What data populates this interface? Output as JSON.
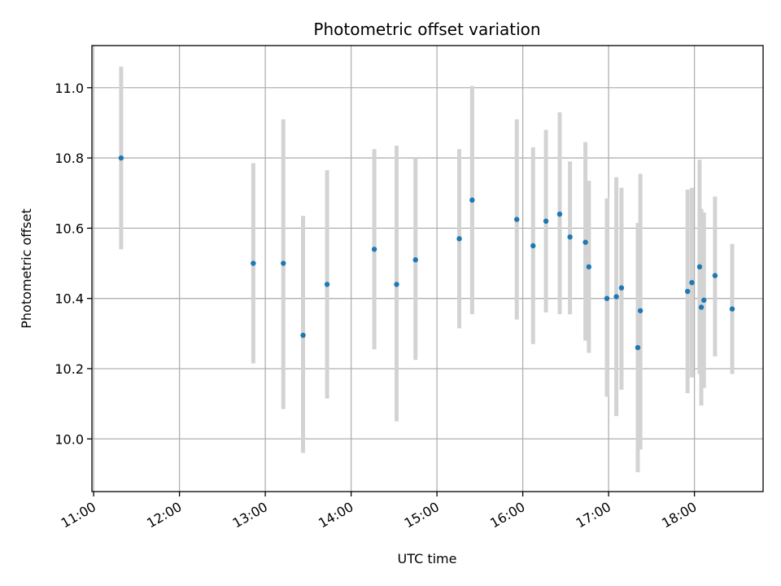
{
  "chart_data": {
    "type": "scatter",
    "title": "Photometric offset variation",
    "xlabel": "UTC time",
    "ylabel": "Photometric offset",
    "grid": true,
    "xlim": [
      10.98,
      18.8
    ],
    "ylim": [
      9.85,
      11.12
    ],
    "x_ticks": [
      {
        "value": 11,
        "label": "11:00"
      },
      {
        "value": 12,
        "label": "12:00"
      },
      {
        "value": 13,
        "label": "13:00"
      },
      {
        "value": 14,
        "label": "14:00"
      },
      {
        "value": 15,
        "label": "15:00"
      },
      {
        "value": 16,
        "label": "16:00"
      },
      {
        "value": 17,
        "label": "17:00"
      },
      {
        "value": 18,
        "label": "18:00"
      }
    ],
    "y_ticks": [
      {
        "value": 10.0,
        "label": "10.0"
      },
      {
        "value": 10.2,
        "label": "10.2"
      },
      {
        "value": 10.4,
        "label": "10.4"
      },
      {
        "value": 10.6,
        "label": "10.6"
      },
      {
        "value": 10.8,
        "label": "10.8"
      },
      {
        "value": 11.0,
        "label": "11.0"
      }
    ],
    "colors": {
      "point": "#1f77b4",
      "error_bar": "#d3d3d3",
      "grid": "#b0b0b0"
    },
    "points": [
      {
        "x": 11.32,
        "y": 10.8,
        "lo": 10.54,
        "hi": 11.06
      },
      {
        "x": 12.86,
        "y": 10.5,
        "lo": 10.215,
        "hi": 10.785
      },
      {
        "x": 13.21,
        "y": 10.5,
        "lo": 10.085,
        "hi": 10.91
      },
      {
        "x": 13.44,
        "y": 10.295,
        "lo": 9.96,
        "hi": 10.635
      },
      {
        "x": 13.72,
        "y": 10.44,
        "lo": 10.115,
        "hi": 10.765
      },
      {
        "x": 14.27,
        "y": 10.54,
        "lo": 10.255,
        "hi": 10.825
      },
      {
        "x": 14.53,
        "y": 10.44,
        "lo": 10.05,
        "hi": 10.835
      },
      {
        "x": 14.75,
        "y": 10.51,
        "lo": 10.225,
        "hi": 10.8
      },
      {
        "x": 15.26,
        "y": 10.57,
        "lo": 10.315,
        "hi": 10.825
      },
      {
        "x": 15.41,
        "y": 10.68,
        "lo": 10.355,
        "hi": 11.005
      },
      {
        "x": 15.93,
        "y": 10.625,
        "lo": 10.34,
        "hi": 10.91
      },
      {
        "x": 16.12,
        "y": 10.55,
        "lo": 10.27,
        "hi": 10.83
      },
      {
        "x": 16.27,
        "y": 10.62,
        "lo": 10.36,
        "hi": 10.88
      },
      {
        "x": 16.43,
        "y": 10.64,
        "lo": 10.355,
        "hi": 10.93
      },
      {
        "x": 16.55,
        "y": 10.575,
        "lo": 10.355,
        "hi": 10.79
      },
      {
        "x": 16.73,
        "y": 10.56,
        "lo": 10.28,
        "hi": 10.845
      },
      {
        "x": 16.77,
        "y": 10.49,
        "lo": 10.245,
        "hi": 10.735
      },
      {
        "x": 16.98,
        "y": 10.4,
        "lo": 10.12,
        "hi": 10.685
      },
      {
        "x": 17.09,
        "y": 10.405,
        "lo": 10.065,
        "hi": 10.745
      },
      {
        "x": 17.15,
        "y": 10.43,
        "lo": 10.14,
        "hi": 10.715
      },
      {
        "x": 17.34,
        "y": 10.26,
        "lo": 9.905,
        "hi": 10.615
      },
      {
        "x": 17.37,
        "y": 10.365,
        "lo": 9.97,
        "hi": 10.755
      },
      {
        "x": 17.92,
        "y": 10.42,
        "lo": 10.13,
        "hi": 10.71
      },
      {
        "x": 17.97,
        "y": 10.445,
        "lo": 10.175,
        "hi": 10.715
      },
      {
        "x": 18.06,
        "y": 10.49,
        "lo": 10.185,
        "hi": 10.795
      },
      {
        "x": 18.08,
        "y": 10.375,
        "lo": 10.095,
        "hi": 10.655
      },
      {
        "x": 18.11,
        "y": 10.395,
        "lo": 10.145,
        "hi": 10.645
      },
      {
        "x": 18.24,
        "y": 10.465,
        "lo": 10.235,
        "hi": 10.69
      },
      {
        "x": 18.44,
        "y": 10.37,
        "lo": 10.185,
        "hi": 10.555
      }
    ]
  }
}
